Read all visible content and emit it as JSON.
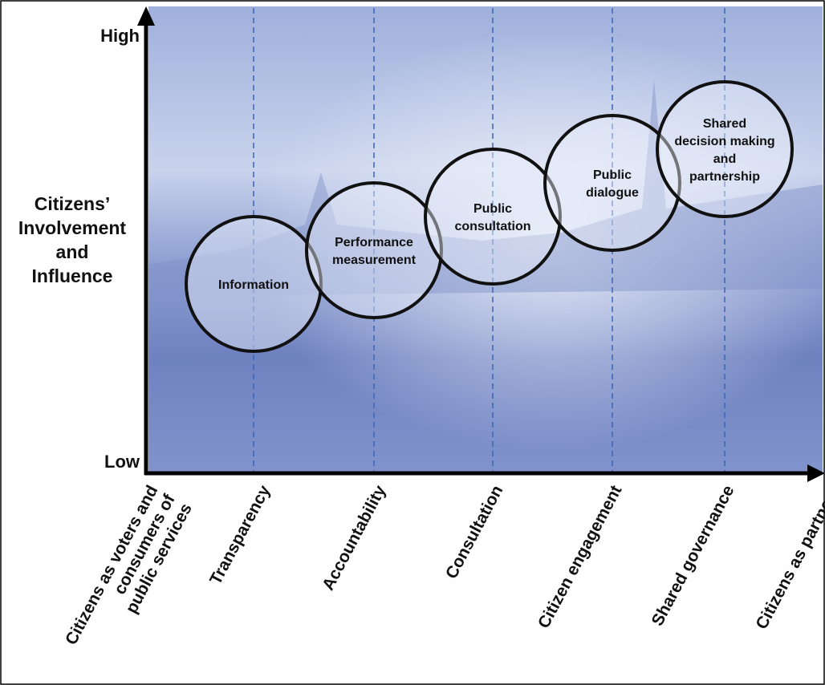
{
  "y_axis": {
    "high": "High",
    "low": "Low",
    "title": [
      "Citizens’",
      "Involvement",
      "and",
      "Influence"
    ]
  },
  "x_axis": {
    "labels": [
      [
        "Citizens as voters and",
        "consumers of",
        "public services"
      ],
      [
        "Transparency"
      ],
      [
        "Accountability"
      ],
      [
        "Consultation"
      ],
      [
        "Citizen engagement"
      ],
      [
        "Shared governance"
      ],
      [
        "Citizens as partners"
      ]
    ]
  },
  "circles": [
    {
      "label": [
        "Information"
      ]
    },
    {
      "label": [
        "Performance",
        "measurement"
      ]
    },
    {
      "label": [
        "Public",
        "consultation"
      ]
    },
    {
      "label": [
        "Public",
        "dialogue"
      ]
    },
    {
      "label": [
        "Shared",
        "decision making",
        "and",
        "partnership"
      ]
    }
  ]
}
